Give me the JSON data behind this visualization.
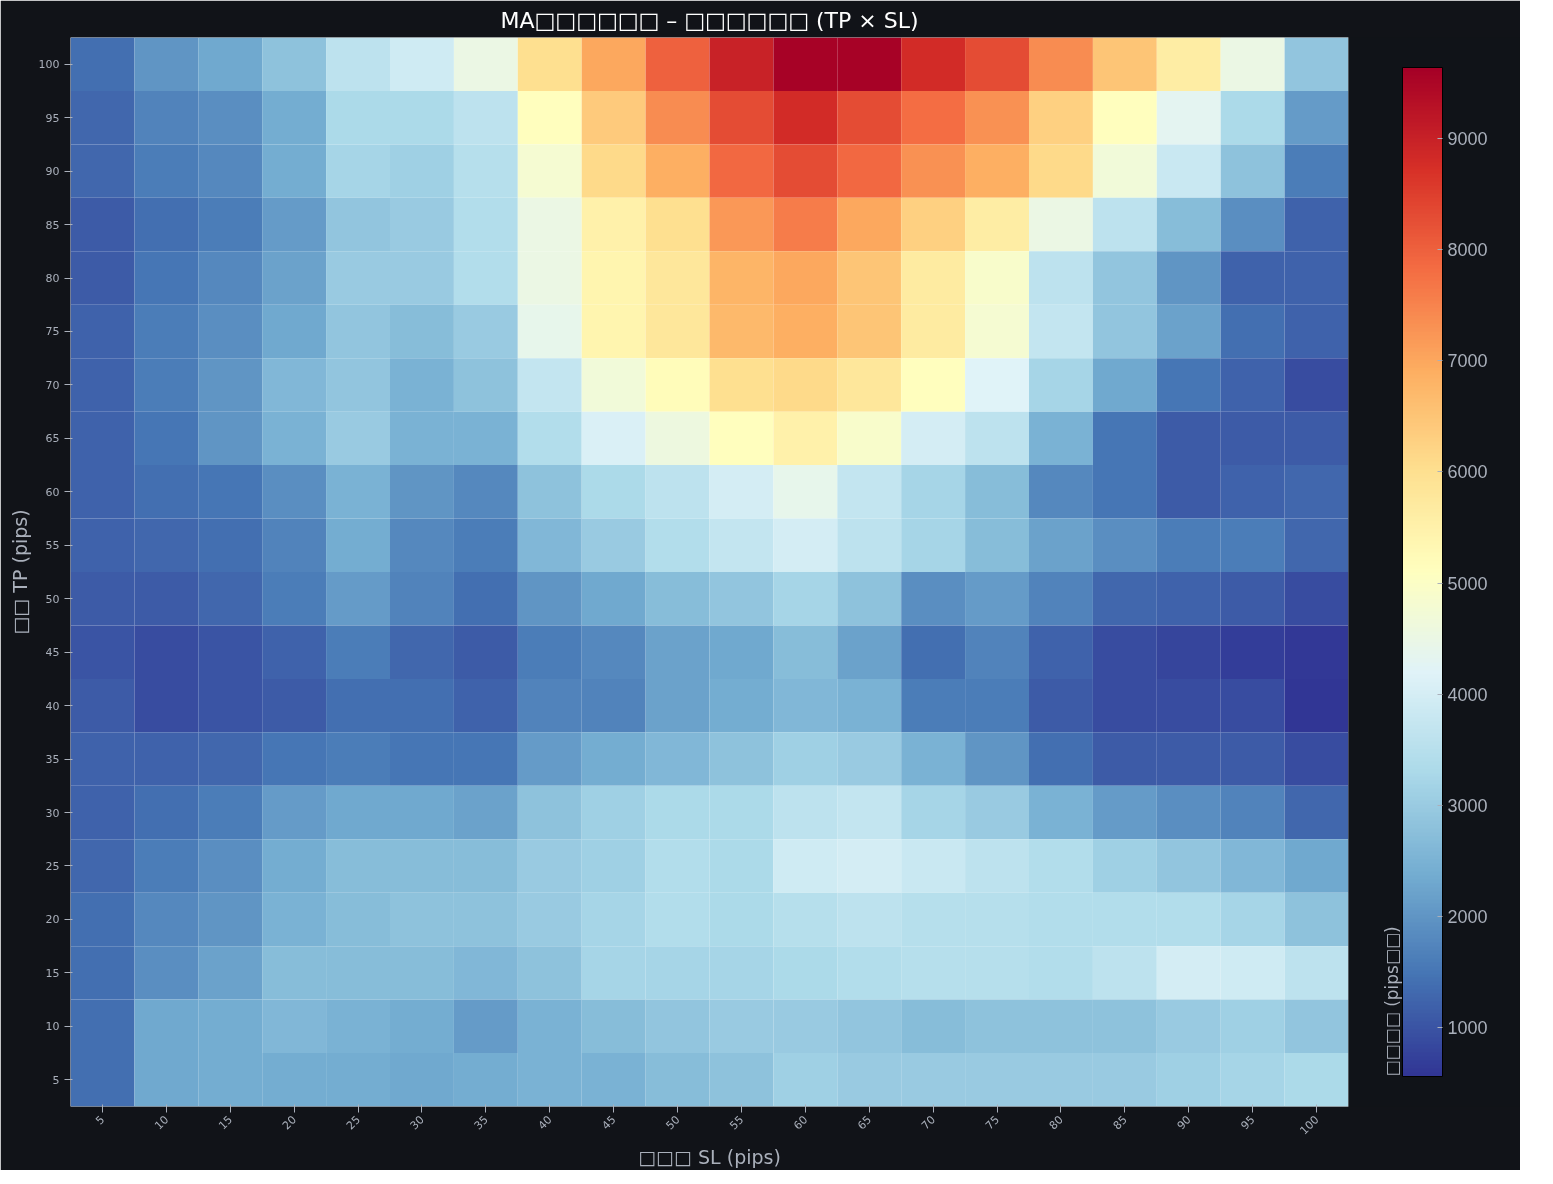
{
  "chart_data": {
    "type": "heatmap",
    "title": "MA□□□□□□ – □□□□□□ (TP × SL)",
    "xlabel": "□□□ SL (pips)",
    "ylabel": "□□ TP (pips)",
    "clabel": "□□□□ (pips□□)",
    "categories": [
      "5",
      "10",
      "15",
      "20",
      "25",
      "30",
      "35",
      "40",
      "45",
      "50",
      "55",
      "60",
      "65",
      "70",
      "75",
      "80",
      "85",
      "90",
      "95",
      "100"
    ],
    "y_categories": [
      "100",
      "95",
      "90",
      "85",
      "80",
      "75",
      "70",
      "65",
      "60",
      "55",
      "50",
      "45",
      "40",
      "35",
      "30",
      "25",
      "20",
      "15",
      "10",
      "5"
    ],
    "clim": [
      560,
      9640
    ],
    "cticks": [
      1000,
      2000,
      3000,
      4000,
      5000,
      6000,
      7000,
      8000,
      9000
    ],
    "cells": [
      [
        1400,
        2000,
        2300,
        2800,
        3600,
        3900,
        4500,
        6000,
        7000,
        8000,
        9000,
        9600,
        9600,
        8800,
        8300,
        7400,
        6500,
        5600,
        4500,
        2900
      ],
      [
        1300,
        1700,
        1900,
        2400,
        3300,
        3300,
        3600,
        5100,
        6400,
        7400,
        8300,
        8800,
        8300,
        7800,
        7300,
        6300,
        5100,
        4300,
        3300,
        2100
      ],
      [
        1300,
        1600,
        1800,
        2400,
        3200,
        3100,
        3500,
        4800,
        6100,
        6900,
        7900,
        8300,
        7900,
        7300,
        6900,
        6100,
        4700,
        3800,
        2800,
        1600
      ],
      [
        1100,
        1400,
        1600,
        2100,
        2900,
        3000,
        3400,
        4500,
        5500,
        6000,
        7200,
        7600,
        7000,
        6300,
        5600,
        4500,
        3600,
        2700,
        1900,
        1200
      ],
      [
        1100,
        1500,
        1800,
        2200,
        3000,
        3000,
        3400,
        4500,
        5400,
        5800,
        6800,
        7000,
        6500,
        5700,
        4900,
        3600,
        2900,
        2000,
        1200,
        1200
      ],
      [
        1200,
        1600,
        1900,
        2300,
        2900,
        2700,
        3000,
        4400,
        5400,
        5800,
        6700,
        6900,
        6500,
        5700,
        4800,
        3700,
        2900,
        2200,
        1400,
        1200
      ],
      [
        1200,
        1600,
        2000,
        2600,
        2900,
        2500,
        2800,
        3700,
        4700,
        5200,
        6000,
        6100,
        5800,
        5100,
        4200,
        3200,
        2300,
        1500,
        1200,
        900
      ],
      [
        1200,
        1500,
        2000,
        2500,
        3000,
        2500,
        2500,
        3400,
        4100,
        4600,
        5100,
        5500,
        4900,
        4000,
        3600,
        2500,
        1500,
        1100,
        1100,
        1100
      ],
      [
        1200,
        1400,
        1500,
        1900,
        2500,
        2000,
        1800,
        2800,
        3300,
        3600,
        4000,
        4400,
        3700,
        3200,
        2700,
        1800,
        1500,
        1100,
        1200,
        1300
      ],
      [
        1200,
        1300,
        1400,
        1700,
        2400,
        1800,
        1600,
        2600,
        3000,
        3400,
        3700,
        4000,
        3600,
        3200,
        2700,
        2200,
        1900,
        1600,
        1600,
        1300
      ],
      [
        1100,
        1100,
        1300,
        1600,
        2100,
        1700,
        1400,
        2000,
        2300,
        2700,
        2900,
        3200,
        2800,
        1900,
        2100,
        1700,
        1300,
        1200,
        1100,
        900
      ],
      [
        1000,
        900,
        1000,
        1200,
        1600,
        1300,
        1100,
        1600,
        1800,
        2200,
        2300,
        2700,
        2200,
        1400,
        1700,
        1200,
        900,
        800,
        700,
        600
      ],
      [
        1100,
        900,
        1000,
        1100,
        1400,
        1400,
        1200,
        1700,
        1700,
        2200,
        2400,
        2600,
        2500,
        1600,
        1600,
        1100,
        900,
        900,
        900,
        560
      ],
      [
        1200,
        1200,
        1300,
        1500,
        1600,
        1500,
        1500,
        2100,
        2400,
        2600,
        2800,
        3100,
        3000,
        2500,
        2000,
        1400,
        1100,
        1100,
        1100,
        900
      ],
      [
        1200,
        1400,
        1600,
        2100,
        2300,
        2300,
        2200,
        2800,
        3100,
        3300,
        3300,
        3600,
        3700,
        3200,
        3000,
        2500,
        2100,
        1900,
        1700,
        1300
      ],
      [
        1300,
        1600,
        1900,
        2400,
        2700,
        2700,
        2700,
        3000,
        3100,
        3400,
        3300,
        3900,
        4000,
        3800,
        3600,
        3400,
        3100,
        2900,
        2600,
        2300
      ],
      [
        1400,
        1800,
        2000,
        2500,
        2700,
        2800,
        2800,
        3000,
        3200,
        3400,
        3300,
        3500,
        3600,
        3500,
        3500,
        3400,
        3400,
        3400,
        3200,
        2800
      ],
      [
        1400,
        1900,
        2200,
        2700,
        2700,
        2700,
        2600,
        2800,
        3200,
        3200,
        3200,
        3300,
        3400,
        3500,
        3500,
        3400,
        3600,
        4000,
        3900,
        3600
      ],
      [
        1400,
        2300,
        2400,
        2600,
        2500,
        2400,
        2100,
        2500,
        2700,
        2900,
        3000,
        3000,
        2900,
        2700,
        2800,
        2800,
        2800,
        3000,
        3100,
        2900
      ],
      [
        1400,
        2300,
        2400,
        2400,
        2400,
        2300,
        2400,
        2500,
        2500,
        2700,
        2800,
        3100,
        3000,
        3000,
        3000,
        3000,
        3000,
        3100,
        3200,
        3300
      ]
    ]
  }
}
